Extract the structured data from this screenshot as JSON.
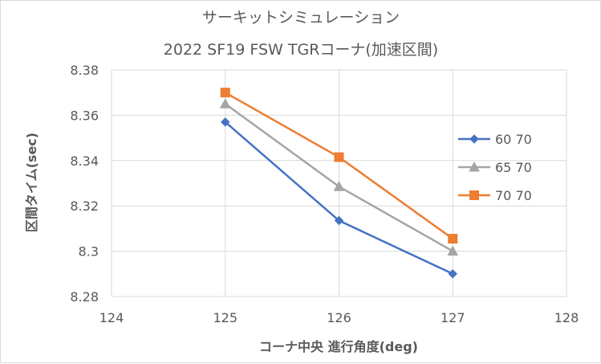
{
  "chart_data": {
    "type": "line",
    "title": "サーキットシミュレーション",
    "subtitle": "2022 SF19 FSW TGRコーナ(加速区間)",
    "xlabel": "コーナ中央 進行角度(deg)",
    "ylabel": "区間タイム(sec)",
    "xlim": [
      124,
      128
    ],
    "ylim": [
      8.28,
      8.38
    ],
    "x_ticks": [
      "124",
      "125",
      "126",
      "127",
      "128"
    ],
    "y_ticks": [
      "8.28",
      "8.3",
      "8.32",
      "8.34",
      "8.36",
      "8.38"
    ],
    "grid": true,
    "legend_position": "right",
    "x": [
      125,
      126,
      127
    ],
    "series": [
      {
        "name": "60 70",
        "values": [
          8.357,
          8.3135,
          8.29
        ],
        "color": "#4472c4",
        "marker": "diamond"
      },
      {
        "name": "65 70",
        "values": [
          8.365,
          8.3285,
          8.3
        ],
        "color": "#a5a5a5",
        "marker": "triangle"
      },
      {
        "name": "70 70",
        "values": [
          8.37,
          8.3415,
          8.3055
        ],
        "color": "#ed7d31",
        "marker": "square"
      }
    ]
  }
}
